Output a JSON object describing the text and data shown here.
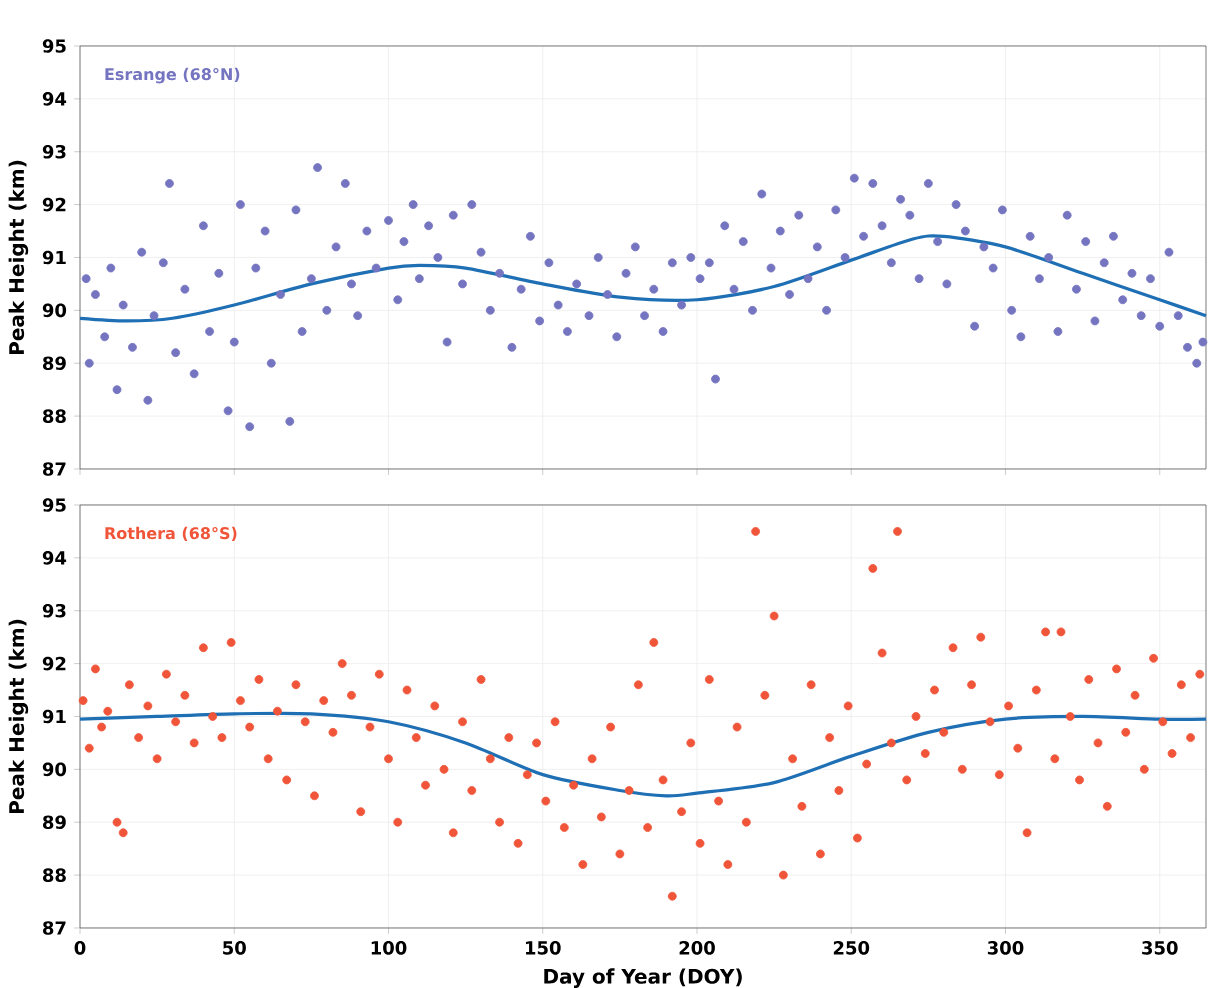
{
  "chart_data": [
    {
      "type": "scatter",
      "ylabel": "Peak Height (km)",
      "xlim": [
        0,
        365
      ],
      "ylim": [
        87,
        95
      ],
      "xticks": [
        0,
        50,
        100,
        150,
        200,
        250,
        300,
        350
      ],
      "yticks": [
        87,
        88,
        89,
        90,
        91,
        92,
        93,
        94,
        95
      ],
      "grid": true,
      "tick_labels": "y",
      "series": [
        {
          "name": "Esrange (68°N)",
          "color": "#7474c0",
          "x": [
            2,
            3,
            5,
            8,
            10,
            12,
            14,
            17,
            20,
            22,
            24,
            27,
            29,
            31,
            34,
            37,
            40,
            42,
            45,
            48,
            50,
            52,
            55,
            57,
            60,
            62,
            65,
            68,
            70,
            72,
            75,
            77,
            80,
            83,
            86,
            88,
            90,
            93,
            96,
            100,
            103,
            105,
            108,
            110,
            113,
            116,
            119,
            121,
            124,
            127,
            130,
            133,
            136,
            140,
            143,
            146,
            149,
            152,
            155,
            158,
            161,
            165,
            168,
            171,
            174,
            177,
            180,
            183,
            186,
            189,
            192,
            195,
            198,
            201,
            204,
            206,
            209,
            212,
            215,
            218,
            221,
            224,
            227,
            230,
            233,
            236,
            239,
            242,
            245,
            248,
            251,
            254,
            257,
            260,
            263,
            266,
            269,
            272,
            275,
            278,
            281,
            284,
            287,
            290,
            293,
            296,
            299,
            302,
            305,
            308,
            311,
            314,
            317,
            320,
            323,
            326,
            329,
            332,
            335,
            338,
            341,
            344,
            347,
            350,
            353,
            356,
            359,
            362,
            364
          ],
          "values": [
            90.6,
            89.0,
            90.3,
            89.5,
            90.8,
            88.5,
            90.1,
            89.3,
            91.1,
            88.3,
            89.9,
            90.9,
            92.4,
            89.2,
            90.4,
            88.8,
            91.6,
            89.6,
            90.7,
            88.1,
            89.4,
            92.0,
            87.8,
            90.8,
            91.5,
            89.0,
            90.3,
            87.9,
            91.9,
            89.6,
            90.6,
            92.7,
            90.0,
            91.2,
            92.4,
            90.5,
            89.9,
            91.5,
            90.8,
            91.7,
            90.2,
            91.3,
            92.0,
            90.6,
            91.6,
            91.0,
            89.4,
            91.8,
            90.5,
            92.0,
            91.1,
            90.0,
            90.7,
            89.3,
            90.4,
            91.4,
            89.8,
            90.9,
            90.1,
            89.6,
            90.5,
            89.9,
            91.0,
            90.3,
            89.5,
            90.7,
            91.2,
            89.9,
            90.4,
            89.6,
            90.9,
            90.1,
            91.0,
            90.6,
            90.9,
            88.7,
            91.6,
            90.4,
            91.3,
            90.0,
            92.2,
            90.8,
            91.5,
            90.3,
            91.8,
            90.6,
            91.2,
            90.0,
            91.9,
            91.0,
            92.5,
            91.4,
            92.4,
            91.6,
            90.9,
            92.1,
            91.8,
            90.6,
            92.4,
            91.3,
            90.5,
            92.0,
            91.5,
            89.7,
            91.2,
            90.8,
            91.9,
            90.0,
            89.5,
            91.4,
            90.6,
            91.0,
            89.6,
            91.8,
            90.4,
            91.3,
            89.8,
            90.9,
            91.4,
            90.2,
            90.7,
            89.9,
            90.6,
            89.7,
            91.1,
            89.9,
            89.3,
            89.0,
            89.4
          ]
        },
        {
          "color": "#1f6fb4",
          "type": "line",
          "x": [
            0,
            15,
            30,
            50,
            75,
            100,
            110,
            125,
            150,
            175,
            200,
            225,
            250,
            270,
            280,
            300,
            325,
            350,
            365
          ],
          "values": [
            89.85,
            89.8,
            89.85,
            90.1,
            90.5,
            90.8,
            90.85,
            90.8,
            90.5,
            90.25,
            90.2,
            90.45,
            90.95,
            91.35,
            91.4,
            91.2,
            90.7,
            90.2,
            89.9
          ]
        }
      ]
    },
    {
      "type": "scatter",
      "xlabel": "Day of Year (DOY)",
      "ylabel": "Peak Height (km)",
      "xlim": [
        0,
        365
      ],
      "ylim": [
        87,
        95
      ],
      "xticks": [
        0,
        50,
        100,
        150,
        200,
        250,
        300,
        350
      ],
      "yticks": [
        87,
        88,
        89,
        90,
        91,
        92,
        93,
        94,
        95
      ],
      "grid": true,
      "series": [
        {
          "name": "Rothera (68°S)",
          "color": "#f0553a",
          "x": [
            1,
            3,
            5,
            7,
            9,
            12,
            14,
            16,
            19,
            22,
            25,
            28,
            31,
            34,
            37,
            40,
            43,
            46,
            49,
            52,
            55,
            58,
            61,
            64,
            67,
            70,
            73,
            76,
            79,
            82,
            85,
            88,
            91,
            94,
            97,
            100,
            103,
            106,
            109,
            112,
            115,
            118,
            121,
            124,
            127,
            130,
            133,
            136,
            139,
            142,
            145,
            148,
            151,
            154,
            157,
            160,
            163,
            166,
            169,
            172,
            175,
            178,
            181,
            184,
            186,
            189,
            192,
            195,
            198,
            201,
            204,
            207,
            210,
            213,
            216,
            219,
            222,
            225,
            228,
            231,
            234,
            237,
            240,
            243,
            246,
            249,
            252,
            255,
            257,
            260,
            263,
            265,
            268,
            271,
            274,
            277,
            280,
            283,
            286,
            289,
            292,
            295,
            298,
            301,
            304,
            307,
            310,
            313,
            316,
            318,
            321,
            324,
            327,
            330,
            333,
            336,
            339,
            342,
            345,
            348,
            351,
            354,
            357,
            360,
            363
          ],
          "values": [
            91.3,
            90.4,
            91.9,
            90.8,
            91.1,
            89.0,
            88.8,
            91.6,
            90.6,
            91.2,
            90.2,
            91.8,
            90.9,
            91.4,
            90.5,
            92.3,
            91.0,
            90.6,
            92.4,
            91.3,
            90.8,
            91.7,
            90.2,
            91.1,
            89.8,
            91.6,
            90.9,
            89.5,
            91.3,
            90.7,
            92.0,
            91.4,
            89.2,
            90.8,
            91.8,
            90.2,
            89.0,
            91.5,
            90.6,
            89.7,
            91.2,
            90.0,
            88.8,
            90.9,
            89.6,
            91.7,
            90.2,
            89.0,
            90.6,
            88.6,
            89.9,
            90.5,
            89.4,
            90.9,
            88.9,
            89.7,
            88.2,
            90.2,
            89.1,
            90.8,
            88.4,
            89.6,
            91.6,
            88.9,
            92.4,
            89.8,
            87.6,
            89.2,
            90.5,
            88.6,
            91.7,
            89.4,
            88.2,
            90.8,
            89.0,
            94.5,
            91.4,
            92.9,
            88.0,
            90.2,
            89.3,
            91.6,
            88.4,
            90.6,
            89.6,
            91.2,
            88.7,
            90.1,
            93.8,
            92.2,
            90.5,
            94.5,
            89.8,
            91.0,
            90.3,
            91.5,
            90.7,
            92.3,
            90.0,
            91.6,
            92.5,
            90.9,
            89.9,
            91.2,
            90.4,
            88.8,
            91.5,
            92.6,
            90.2,
            92.6,
            91.0,
            89.8,
            91.7,
            90.5,
            89.3,
            91.9,
            90.7,
            91.4,
            90.0,
            92.1,
            90.9,
            90.3,
            91.6,
            90.6,
            91.8
          ]
        },
        {
          "color": "#1f6fb4",
          "type": "line",
          "x": [
            0,
            25,
            50,
            75,
            100,
            125,
            150,
            175,
            190,
            200,
            225,
            250,
            275,
            300,
            325,
            350,
            365
          ],
          "values": [
            90.95,
            91.0,
            91.05,
            91.05,
            90.9,
            90.5,
            89.9,
            89.6,
            89.5,
            89.55,
            89.75,
            90.25,
            90.7,
            90.95,
            91.0,
            90.95,
            90.95
          ]
        }
      ]
    }
  ]
}
